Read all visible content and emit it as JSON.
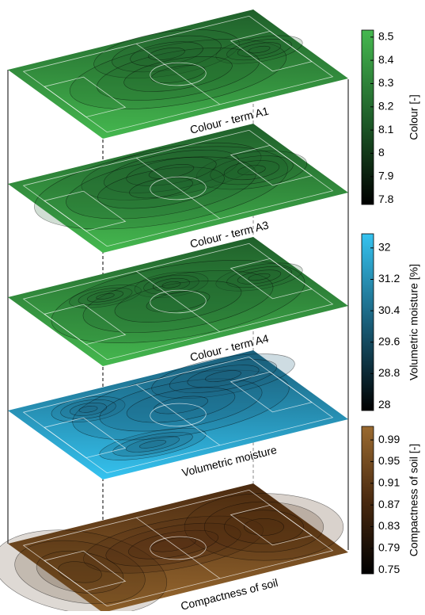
{
  "chart_data": [
    {
      "type": "contour",
      "panels": [
        "Colour - term A1",
        "Colour - term A3",
        "Colour - term A4"
      ],
      "colorbar_label": "Colour [-]",
      "colors": [
        "#000000",
        "#1f5f2a",
        "#45b84f"
      ],
      "clim": [
        7.78,
        8.53
      ],
      "cticks": [
        7.8,
        7.9,
        8,
        8.1,
        8.2,
        8.3,
        8.4,
        8.5
      ]
    },
    {
      "type": "contour",
      "panels": [
        "Volumetric moisture"
      ],
      "colorbar_label": "Volumetric moisture [%]",
      "colors": [
        "#000000",
        "#1a5f7a",
        "#35c3f0"
      ],
      "clim": [
        27.86,
        32.36
      ],
      "cticks": [
        28,
        28.8,
        29.6,
        30.4,
        31.2,
        32
      ]
    },
    {
      "type": "contour",
      "panels": [
        "Compactness of soil"
      ],
      "colorbar_label": "Compactness of soil [-]",
      "colors": [
        "#000000",
        "#4a2a10",
        "#9a6a30"
      ],
      "clim": [
        0.743,
        1.015
      ],
      "cticks": [
        0.75,
        0.79,
        0.83,
        0.87,
        0.91,
        0.95,
        0.99
      ]
    }
  ]
}
